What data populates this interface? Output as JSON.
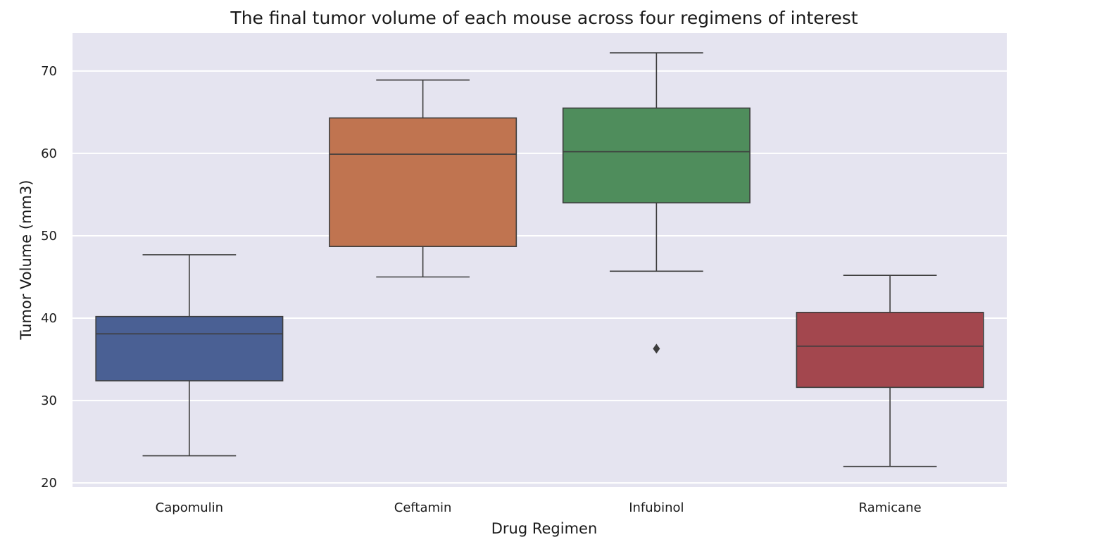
{
  "chart_data": {
    "type": "box",
    "title": "The final tumor volume of each mouse across four regimens of interest",
    "xlabel": "Drug Regimen",
    "ylabel": "Tumor Volume (mm3)",
    "ylim": [
      19.5,
      74.6
    ],
    "yticks": [
      20,
      30,
      40,
      50,
      60,
      70
    ],
    "grid": true,
    "categories": [
      "Capomulin",
      "Ceftamin",
      "Infubinol",
      "Ramicane"
    ],
    "series": [
      {
        "whisker_low": 23.3,
        "q1": 32.4,
        "median": 38.1,
        "q3": 40.2,
        "whisker_high": 47.7,
        "outliers": [],
        "color": "#4a6094"
      },
      {
        "whisker_low": 45.0,
        "q1": 48.7,
        "median": 59.9,
        "q3": 64.3,
        "whisker_high": 68.9,
        "outliers": [],
        "color": "#c07450"
      },
      {
        "whisker_low": 45.7,
        "q1": 54.0,
        "median": 60.2,
        "q3": 65.5,
        "whisker_high": 72.2,
        "outliers": [
          36.3
        ],
        "color": "#4f8d5c"
      },
      {
        "whisker_low": 22.0,
        "q1": 31.6,
        "median": 36.6,
        "q3": 40.7,
        "whisker_high": 45.2,
        "outliers": [],
        "color": "#a3474e"
      }
    ],
    "colors": {
      "plot_background": "#e5e4f0",
      "gridline": "#ffffff",
      "box_edge": "#3d3d3d"
    }
  }
}
